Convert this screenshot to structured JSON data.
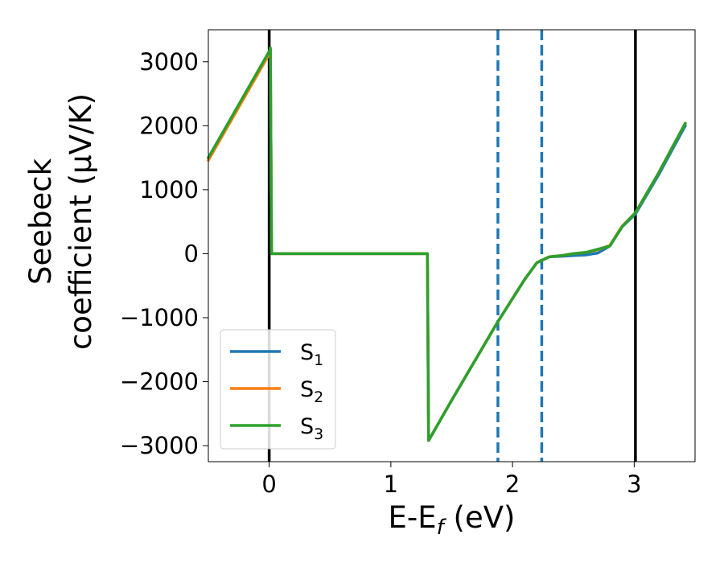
{
  "chart_data": {
    "type": "line",
    "title": "",
    "xlabel": "E-E",
    "xlabel_sub": "f",
    "xlabel_unit": " (eV)",
    "ylabel_line1": "Seebeck",
    "ylabel_line2": "coefficient  (μV/K)",
    "xlim": [
      -0.5,
      3.5
    ],
    "ylim": [
      -3250,
      3500
    ],
    "xticks": [
      0,
      1,
      2,
      3
    ],
    "xtick_labels": [
      "0",
      "1",
      "2",
      "3"
    ],
    "yticks": [
      -3000,
      -2000,
      -1000,
      0,
      1000,
      2000,
      3000
    ],
    "ytick_labels": [
      "−3000",
      "−2000",
      "−1000",
      "0",
      "1000",
      "2000",
      "3000"
    ],
    "grid": false,
    "legend_position": "lower-left",
    "vlines": [
      {
        "x": 0.0,
        "style": "solid",
        "color": "#000000"
      },
      {
        "x": 3.01,
        "style": "solid",
        "color": "#000000"
      },
      {
        "x": 1.88,
        "style": "dashed",
        "color": "#1f77b4"
      },
      {
        "x": 2.24,
        "style": "dashed",
        "color": "#1f77b4"
      }
    ],
    "series": [
      {
        "name": "S",
        "sub": "1",
        "color": "#1f77b4",
        "x": [
          -0.5,
          0.0,
          0.01,
          0.02,
          0.03,
          1.0,
          1.3,
          1.31,
          1.5,
          1.88,
          2.1,
          2.2,
          2.3,
          2.4,
          2.5,
          2.6,
          2.7,
          2.8,
          2.9,
          3.01,
          3.2,
          3.42
        ],
        "y": [
          1500,
          3150,
          3200,
          0,
          0,
          0,
          0,
          -2920,
          -2290,
          -1060,
          -400,
          -140,
          -50,
          -40,
          -30,
          -20,
          10,
          120,
          420,
          620,
          1230,
          2000
        ]
      },
      {
        "name": "S",
        "sub": "2",
        "color": "#ff7f0e",
        "x": [
          -0.5,
          0.0,
          0.01,
          0.02,
          0.03,
          1.0,
          1.3,
          1.31,
          1.5,
          1.88,
          2.1,
          2.2,
          2.3,
          2.4,
          2.5,
          2.6,
          2.7,
          2.8,
          2.9,
          3.01,
          3.2,
          3.42
        ],
        "y": [
          1460,
          3120,
          3190,
          0,
          0,
          0,
          0,
          -2920,
          -2290,
          -1060,
          -400,
          -140,
          -50,
          -30,
          0,
          20,
          60,
          130,
          430,
          640,
          1260,
          2040
        ]
      },
      {
        "name": "S",
        "sub": "3",
        "color": "#2ca02c",
        "x": [
          -0.5,
          0.0,
          0.01,
          0.02,
          0.03,
          1.0,
          1.3,
          1.31,
          1.5,
          1.88,
          2.1,
          2.2,
          2.3,
          2.4,
          2.5,
          2.6,
          2.7,
          2.8,
          2.9,
          3.01,
          3.2,
          3.42
        ],
        "y": [
          1500,
          3160,
          3220,
          0,
          0,
          0,
          0,
          -2920,
          -2290,
          -1060,
          -400,
          -140,
          -50,
          -30,
          0,
          20,
          70,
          120,
          420,
          640,
          1260,
          2040
        ]
      }
    ]
  }
}
